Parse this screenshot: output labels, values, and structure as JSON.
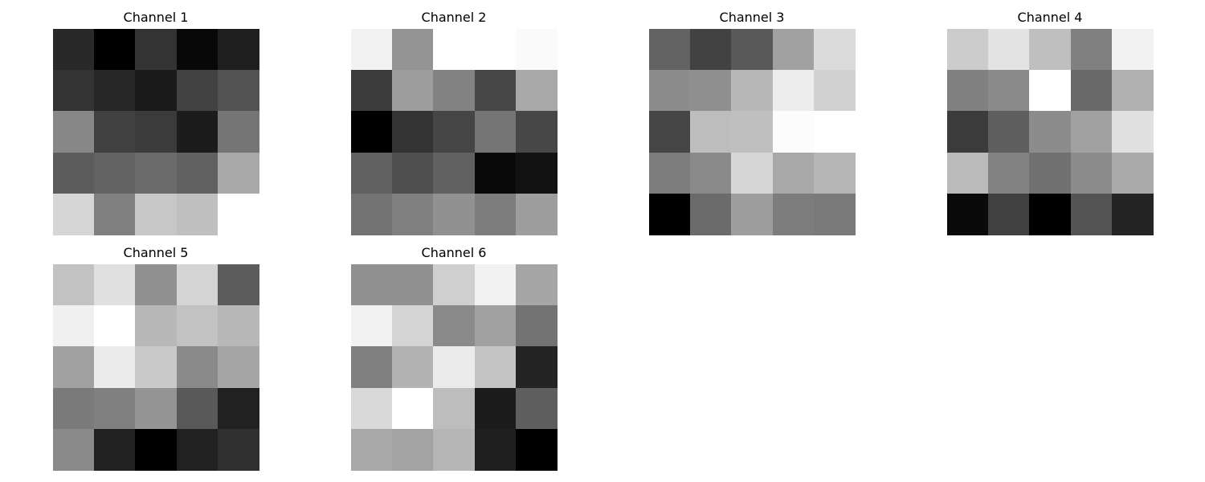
{
  "chart_data": [
    {
      "type": "heatmap",
      "title": "Channel 1",
      "colormap": "gray",
      "grid": false,
      "axes_visible": false,
      "values": [
        [
          0.16,
          0.0,
          0.2,
          0.03,
          0.12
        ],
        [
          0.2,
          0.15,
          0.1,
          0.26,
          0.32
        ],
        [
          0.53,
          0.25,
          0.23,
          0.11,
          0.46
        ],
        [
          0.36,
          0.39,
          0.42,
          0.38,
          0.66
        ],
        [
          0.84,
          0.5,
          0.78,
          0.75,
          1.0
        ]
      ]
    },
    {
      "type": "heatmap",
      "title": "Channel 2",
      "colormap": "gray",
      "grid": false,
      "axes_visible": false,
      "values": [
        [
          0.95,
          0.58,
          1.0,
          1.0,
          0.98
        ],
        [
          0.23,
          0.62,
          0.51,
          0.28,
          0.66
        ],
        [
          0.0,
          0.2,
          0.27,
          0.46,
          0.28
        ],
        [
          0.38,
          0.31,
          0.38,
          0.04,
          0.07
        ],
        [
          0.45,
          0.5,
          0.57,
          0.49,
          0.62
        ]
      ]
    },
    {
      "type": "heatmap",
      "title": "Channel 3",
      "colormap": "gray",
      "grid": false,
      "axes_visible": false,
      "values": [
        [
          0.39,
          0.26,
          0.35,
          0.63,
          0.86
        ],
        [
          0.55,
          0.56,
          0.72,
          0.93,
          0.82
        ],
        [
          0.27,
          0.74,
          0.75,
          0.99,
          1.0
        ],
        [
          0.49,
          0.54,
          0.84,
          0.66,
          0.71
        ],
        [
          0.0,
          0.42,
          0.62,
          0.49,
          0.48
        ]
      ]
    },
    {
      "type": "heatmap",
      "title": "Channel 4",
      "colormap": "gray",
      "grid": false,
      "axes_visible": false,
      "values": [
        [
          0.8,
          0.89,
          0.75,
          0.5,
          0.95
        ],
        [
          0.5,
          0.54,
          1.0,
          0.41,
          0.69
        ],
        [
          0.23,
          0.37,
          0.55,
          0.63,
          0.88
        ],
        [
          0.73,
          0.51,
          0.44,
          0.55,
          0.67
        ],
        [
          0.04,
          0.25,
          0.0,
          0.33,
          0.14
        ]
      ]
    },
    {
      "type": "heatmap",
      "title": "Channel 5",
      "colormap": "gray",
      "grid": false,
      "axes_visible": false,
      "values": [
        [
          0.76,
          0.88,
          0.57,
          0.83,
          0.36
        ],
        [
          0.94,
          1.0,
          0.72,
          0.76,
          0.72
        ],
        [
          0.63,
          0.92,
          0.79,
          0.54,
          0.65
        ],
        [
          0.48,
          0.5,
          0.58,
          0.35,
          0.13
        ],
        [
          0.54,
          0.13,
          0.0,
          0.13,
          0.19
        ]
      ]
    },
    {
      "type": "heatmap",
      "title": "Channel 6",
      "colormap": "gray",
      "grid": false,
      "axes_visible": false,
      "values": [
        [
          0.57,
          0.57,
          0.81,
          0.95,
          0.65
        ],
        [
          0.95,
          0.83,
          0.54,
          0.63,
          0.45
        ],
        [
          0.5,
          0.7,
          0.92,
          0.77,
          0.14
        ],
        [
          0.85,
          1.0,
          0.74,
          0.11,
          0.37
        ],
        [
          0.66,
          0.64,
          0.71,
          0.12,
          0.0
        ]
      ]
    }
  ]
}
